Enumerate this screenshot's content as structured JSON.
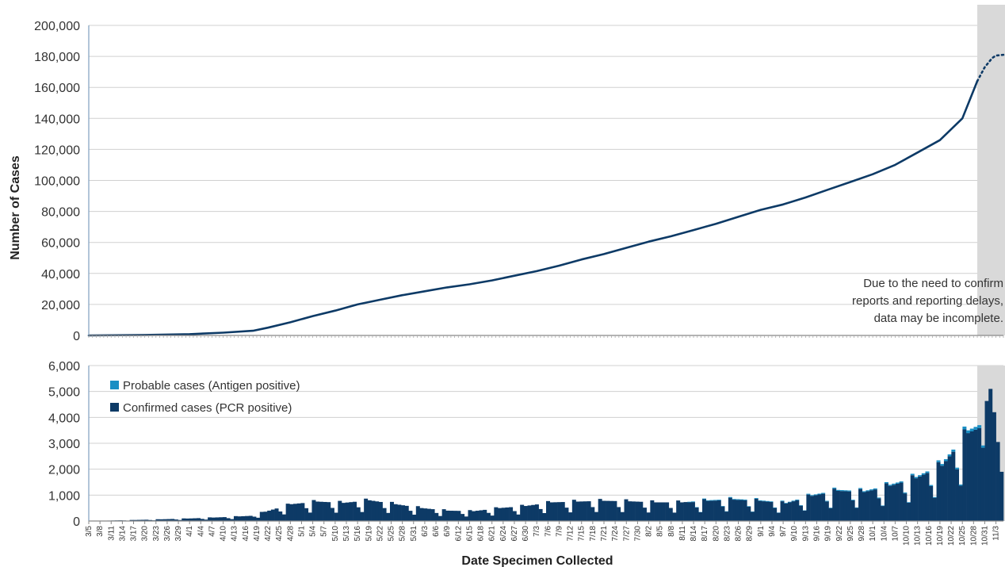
{
  "chart_data": [
    {
      "type": "line",
      "title": "",
      "ylabel": "Number of Cases",
      "ylim": [
        0,
        200000
      ],
      "yticks": [
        0,
        20000,
        40000,
        60000,
        80000,
        100000,
        120000,
        140000,
        160000,
        180000,
        200000
      ],
      "ytick_labels": [
        "0",
        "20,000",
        "40,000",
        "60,000",
        "80,000",
        "100,000",
        "120,000",
        "140,000",
        "160,000",
        "180,000",
        "200,000"
      ],
      "x_start": "2020-03-05",
      "x_end": "2020-11-05",
      "grid": true,
      "shaded_region": {
        "from": "2020-10-29",
        "to": "2020-11-05"
      },
      "annotation": [
        "Due to the need to confirm",
        "reports and reporting delays,",
        "data may be incomplete."
      ],
      "series": [
        {
          "name": "",
          "color": "#0d3a66",
          "x": [
            "2020-03-05",
            "2020-03-20",
            "2020-04-01",
            "2020-04-10",
            "2020-04-18",
            "2020-04-22",
            "2020-04-28",
            "2020-05-04",
            "2020-05-10",
            "2020-05-16",
            "2020-05-22",
            "2020-05-28",
            "2020-06-03",
            "2020-06-09",
            "2020-06-15",
            "2020-06-21",
            "2020-06-27",
            "2020-07-03",
            "2020-07-09",
            "2020-07-15",
            "2020-07-21",
            "2020-07-27",
            "2020-08-02",
            "2020-08-08",
            "2020-08-14",
            "2020-08-20",
            "2020-08-26",
            "2020-09-01",
            "2020-09-07",
            "2020-09-13",
            "2020-09-19",
            "2020-09-25",
            "2020-10-01",
            "2020-10-07",
            "2020-10-13",
            "2020-10-19",
            "2020-10-25",
            "2020-10-29"
          ],
          "y": [
            0,
            300,
            800,
            1800,
            3000,
            5000,
            8500,
            12500,
            16000,
            20000,
            23000,
            26000,
            28500,
            31000,
            33000,
            35500,
            38500,
            41500,
            45000,
            49000,
            52500,
            56500,
            60500,
            64000,
            68000,
            72000,
            76500,
            81000,
            84500,
            89000,
            94000,
            99000,
            104000,
            110000,
            118000,
            126000,
            140000,
            164000
          ]
        },
        {
          "name": "",
          "style": "dotted",
          "color": "#0d3a66",
          "x": [
            "2020-10-29",
            "2020-10-31",
            "2020-11-02",
            "2020-11-03",
            "2020-11-05"
          ],
          "y": [
            164000,
            173000,
            179000,
            180500,
            181000
          ]
        }
      ]
    },
    {
      "type": "bar",
      "stacked": true,
      "xlabel": "Date Specimen Collected",
      "ylim": [
        0,
        6000
      ],
      "yticks": [
        0,
        1000,
        2000,
        3000,
        4000,
        5000,
        6000
      ],
      "ytick_labels": [
        "0",
        "1,000",
        "2,000",
        "3,000",
        "4,000",
        "5,000",
        "6,000"
      ],
      "x_start": "2020-03-05",
      "x_end": "2020-11-05",
      "xtick_labels": [
        "3/5",
        "3/8",
        "3/11",
        "3/14",
        "3/17",
        "3/20",
        "3/23",
        "3/26",
        "3/29",
        "4/1",
        "4/4",
        "4/7",
        "4/10",
        "4/13",
        "4/16",
        "4/19",
        "4/22",
        "4/25",
        "4/28",
        "5/1",
        "5/4",
        "5/7",
        "5/10",
        "5/13",
        "5/16",
        "5/19",
        "5/22",
        "5/25",
        "5/28",
        "5/31",
        "6/3",
        "6/6",
        "6/9",
        "6/12",
        "6/15",
        "6/18",
        "6/21",
        "6/24",
        "6/27",
        "6/30",
        "7/3",
        "7/6",
        "7/9",
        "7/12",
        "7/15",
        "7/18",
        "7/21",
        "7/24",
        "7/27",
        "7/30",
        "8/2",
        "8/5",
        "8/8",
        "8/11",
        "8/14",
        "8/17",
        "8/20",
        "8/23",
        "8/26",
        "8/29",
        "9/1",
        "9/4",
        "9/7",
        "9/10",
        "9/13",
        "9/16",
        "9/19",
        "9/22",
        "9/25",
        "9/28",
        "10/1",
        "10/4",
        "10/7",
        "10/10",
        "10/13",
        "10/16",
        "10/19",
        "10/22",
        "10/25",
        "10/28",
        "10/31",
        "11/3"
      ],
      "legend_position": "top-left",
      "series": [
        {
          "name": "Probable cases (Antigen positive)",
          "color": "#1a8fc4"
        },
        {
          "name": "Confirmed cases (PCR positive)",
          "color": "#0d3a66"
        }
      ],
      "daily_trend": {
        "x": [
          "2020-03-05",
          "2020-03-20",
          "2020-04-01",
          "2020-04-10",
          "2020-04-17",
          "2020-04-22",
          "2020-04-28",
          "2020-05-05",
          "2020-05-12",
          "2020-05-19",
          "2020-05-26",
          "2020-06-02",
          "2020-06-09",
          "2020-06-16",
          "2020-06-23",
          "2020-06-30",
          "2020-07-07",
          "2020-07-14",
          "2020-07-21",
          "2020-07-28",
          "2020-08-04",
          "2020-08-11",
          "2020-08-18",
          "2020-08-25",
          "2020-09-01",
          "2020-09-08",
          "2020-09-15",
          "2020-09-22",
          "2020-09-29",
          "2020-10-06",
          "2020-10-13",
          "2020-10-20",
          "2020-10-27",
          "2020-10-30",
          "2020-11-02",
          "2020-11-03",
          "2020-11-05"
        ],
        "y": [
          0,
          50,
          100,
          150,
          200,
          400,
          650,
          750,
          700,
          800,
          650,
          500,
          400,
          380,
          500,
          580,
          720,
          750,
          780,
          760,
          720,
          720,
          800,
          850,
          800,
          700,
          1000,
          1200,
          1150,
          1400,
          1700,
          2200,
          3500,
          3700,
          5100,
          4200,
          1900
        ]
      }
    }
  ]
}
